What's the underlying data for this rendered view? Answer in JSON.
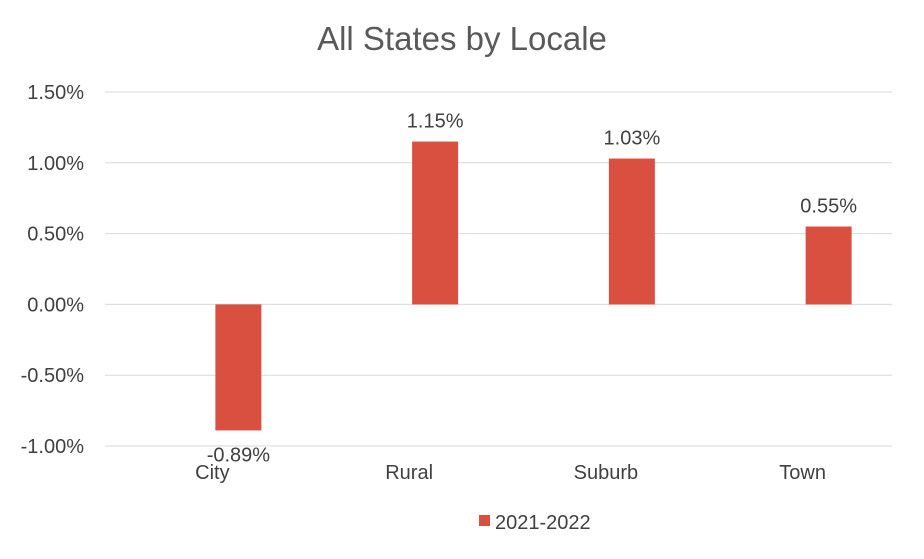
{
  "chart_data": {
    "type": "bar",
    "title": "All States by Locale",
    "categories": [
      "City",
      "Rural",
      "Suburb",
      "Town"
    ],
    "series": [
      {
        "name": "2021-2022",
        "values": [
          -0.89,
          1.15,
          1.03,
          0.55
        ],
        "data_labels": [
          "-0.89%",
          "1.15%",
          "1.03%",
          "0.55%"
        ],
        "color": "#d94f40"
      }
    ],
    "ylim": [
      -1.0,
      1.5
    ],
    "yticks": [
      1.5,
      1.0,
      0.5,
      0.0,
      -0.5,
      -1.0
    ],
    "ytick_labels": [
      "1.50%",
      "1.00%",
      "0.50%",
      "0.00%",
      "-0.50%",
      "-1.00%"
    ],
    "xlabel": "",
    "ylabel": "",
    "grid": true,
    "legend_position": "bottom"
  }
}
